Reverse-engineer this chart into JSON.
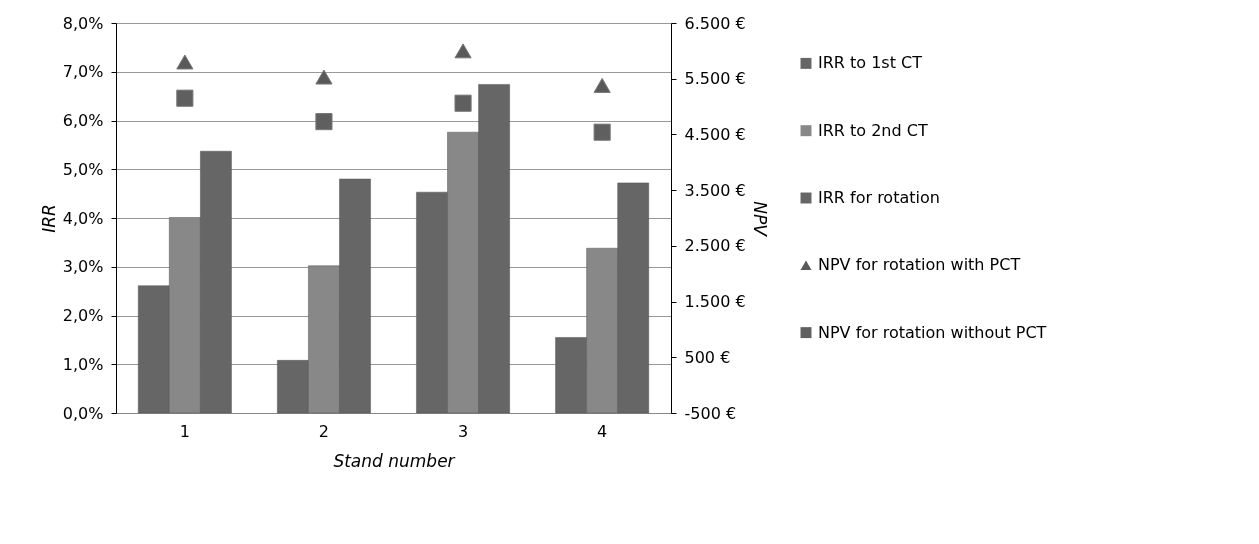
{
  "chart_data": {
    "type": "bar",
    "xlabel": "Stand number",
    "ylabel": "IRR",
    "y2label": "NPV",
    "categories": [
      "1",
      "2",
      "3",
      "4"
    ],
    "series": [
      {
        "name": "IRR to 1st CT",
        "color": "#666666",
        "values": [
          2.61,
          1.08,
          4.53,
          1.55
        ]
      },
      {
        "name": "IRR to 2nd CT",
        "color": "#888888",
        "values": [
          4.01,
          3.02,
          5.76,
          3.38
        ]
      },
      {
        "name": "IRR for rotation",
        "color": "#666666",
        "values": [
          5.37,
          4.8,
          6.74,
          4.72
        ]
      },
      {
        "name": "NPV for rotation with PCT",
        "type": "scatter",
        "axis": "y2",
        "marker": "triangle",
        "color": "#595959",
        "values": [
          5800,
          5530,
          6000,
          5380
        ]
      },
      {
        "name": "NPV for rotation without PCT",
        "type": "scatter",
        "axis": "y2",
        "marker": "square",
        "color": "#5f5f5f",
        "values": [
          5150,
          4730,
          5060,
          4540
        ]
      }
    ],
    "ylim": [
      0,
      8
    ],
    "yticks": [
      {
        "value": 0,
        "label": "0,0%"
      },
      {
        "value": 1,
        "label": "1,0%"
      },
      {
        "value": 2,
        "label": "2,0%"
      },
      {
        "value": 3,
        "label": "3,0%"
      },
      {
        "value": 4,
        "label": "4,0%"
      },
      {
        "value": 5,
        "label": "5,0%"
      },
      {
        "value": 6,
        "label": "6,0%"
      },
      {
        "value": 7,
        "label": "7,0%"
      },
      {
        "value": 8,
        "label": "8,0%"
      }
    ],
    "y2lim": [
      -500,
      6500
    ],
    "y2ticks": [
      {
        "value": -500,
        "label": "-500 €"
      },
      {
        "value": 500,
        "label": "500 €"
      },
      {
        "value": 1500,
        "label": "1.500 €"
      },
      {
        "value": 2500,
        "label": "2.500 €"
      },
      {
        "value": 3500,
        "label": "3.500 €"
      },
      {
        "value": 4500,
        "label": "4.500 €"
      },
      {
        "value": 5500,
        "label": "5.500 €"
      },
      {
        "value": 6500,
        "label": "6.500 €"
      }
    ],
    "grid": "y",
    "legend": "right"
  }
}
